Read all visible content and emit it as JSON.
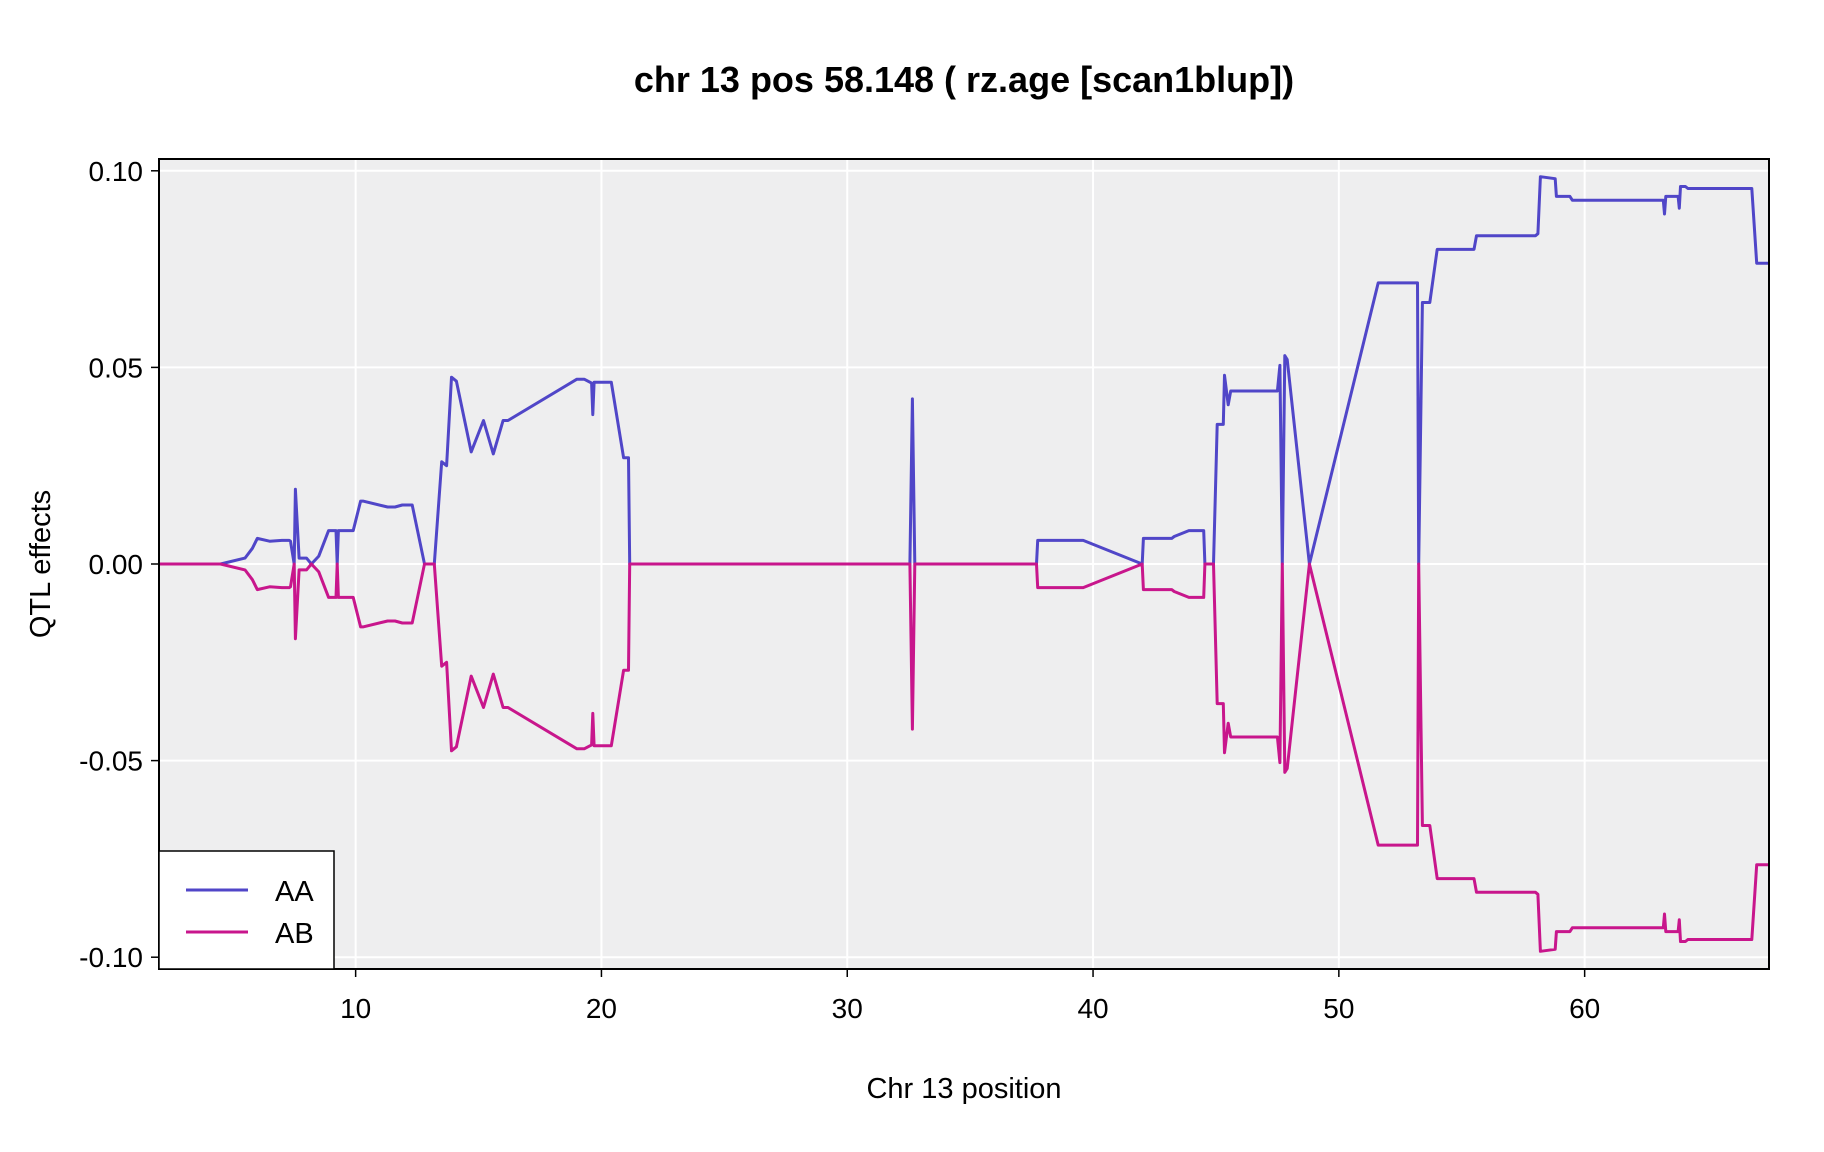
{
  "chart_data": {
    "type": "line",
    "title": "chr 13 pos 58.148 ( rz.age  [scan1blup])",
    "xlabel": "Chr 13 position",
    "ylabel": "QTL effects",
    "xlim": [
      2,
      67.5
    ],
    "ylim": [
      -0.103,
      0.103
    ],
    "x_ticks": [
      10,
      20,
      30,
      40,
      50,
      60
    ],
    "y_ticks": [
      0.1,
      0.05,
      0.0,
      -0.05,
      -0.1
    ],
    "y_tick_labels": [
      "0.10",
      "0.05",
      "0.00",
      "-0.05",
      "-0.10"
    ],
    "grid": true,
    "legend_position": "bottom-left",
    "colors": {
      "AA": "#5046c8",
      "AB": "#c8168c",
      "panel": "#eeeeef",
      "grid": "#ffffff"
    },
    "x": [
      2,
      4.5,
      5.5,
      5.8,
      6.0,
      6.5,
      7.0,
      7.3,
      7.35,
      7.5,
      7.55,
      7.7,
      8.0,
      8.2,
      8.5,
      8.9,
      9.2,
      9.25,
      9.3,
      9.4,
      9.9,
      10.2,
      10.3,
      11.3,
      11.6,
      11.9,
      12.3,
      12.8,
      13.2,
      13.5,
      13.7,
      13.9,
      14.1,
      14.7,
      15.2,
      15.6,
      16.0,
      16.2,
      19.0,
      19.3,
      19.6,
      19.65,
      19.7,
      19.8,
      20.4,
      20.9,
      21.1,
      21.15,
      32.55,
      32.65,
      32.75,
      37.7,
      37.75,
      39.4,
      39.6,
      42.0,
      42.05,
      43.2,
      43.3,
      43.9,
      44.5,
      44.55,
      44.9,
      45.05,
      45.3,
      45.35,
      45.5,
      45.6,
      47.5,
      47.6,
      47.7,
      47.8,
      47.9,
      48.8,
      51.6,
      53.2,
      53.25,
      53.4,
      53.7,
      54.0,
      55.5,
      55.6,
      58.0,
      58.1,
      58.2,
      58.8,
      58.85,
      59.4,
      59.5,
      63.2,
      63.25,
      63.3,
      63.8,
      63.85,
      63.9,
      64.1,
      64.2,
      66.8,
      67.0,
      67.5
    ],
    "series": [
      {
        "name": "AA",
        "values": [
          0,
          0,
          0.0015,
          0.004,
          0.0065,
          0.0058,
          0.006,
          0.006,
          0.0058,
          0,
          0.019,
          0.0015,
          0.0015,
          0,
          0.002,
          0.0085,
          0.0085,
          0,
          0.0085,
          0.0085,
          0.0085,
          0.016,
          0.016,
          0.0145,
          0.0145,
          0.015,
          0.015,
          0,
          0,
          0.026,
          0.025,
          0.0475,
          0.0465,
          0.0285,
          0.0365,
          0.028,
          0.0365,
          0.0365,
          0.047,
          0.047,
          0.046,
          0.038,
          0.0462,
          0.0462,
          0.0462,
          0.027,
          0.027,
          0,
          0,
          0.042,
          0,
          0,
          0.006,
          0.006,
          0.006,
          0,
          0.0065,
          0.0065,
          0.007,
          0.0085,
          0.0085,
          0,
          0,
          0.0355,
          0.0355,
          0.048,
          0.0405,
          0.044,
          0.044,
          0.0505,
          0,
          0.053,
          0.052,
          0,
          0.0715,
          0.0715,
          0,
          0.0665,
          0.0665,
          0.08,
          0.08,
          0.0835,
          0.0835,
          0.084,
          0.0985,
          0.098,
          0.0935,
          0.0935,
          0.0925,
          0.0925,
          0.089,
          0.0935,
          0.0935,
          0.0905,
          0.096,
          0.096,
          0.0955,
          0.0955,
          0.0765,
          0.0765
        ]
      },
      {
        "name": "AB",
        "values": [
          0,
          0,
          -0.0015,
          -0.004,
          -0.0065,
          -0.0058,
          -0.006,
          -0.006,
          -0.0058,
          0,
          -0.019,
          -0.0015,
          -0.0015,
          0,
          -0.002,
          -0.0085,
          -0.0085,
          0,
          -0.0085,
          -0.0085,
          -0.0085,
          -0.016,
          -0.016,
          -0.0145,
          -0.0145,
          -0.015,
          -0.015,
          0,
          0,
          -0.026,
          -0.025,
          -0.0475,
          -0.0465,
          -0.0285,
          -0.0365,
          -0.028,
          -0.0365,
          -0.0365,
          -0.047,
          -0.047,
          -0.046,
          -0.038,
          -0.0462,
          -0.0462,
          -0.0462,
          -0.027,
          -0.027,
          0,
          0,
          -0.042,
          0,
          0,
          -0.006,
          -0.006,
          -0.006,
          0,
          -0.0065,
          -0.0065,
          -0.007,
          -0.0085,
          -0.0085,
          0,
          0,
          -0.0355,
          -0.0355,
          -0.048,
          -0.0405,
          -0.044,
          -0.044,
          -0.0505,
          0,
          -0.053,
          -0.052,
          0,
          -0.0715,
          -0.0715,
          0,
          -0.0665,
          -0.0665,
          -0.08,
          -0.08,
          -0.0835,
          -0.0835,
          -0.084,
          -0.0985,
          -0.098,
          -0.0935,
          -0.0935,
          -0.0925,
          -0.0925,
          -0.089,
          -0.0935,
          -0.0935,
          -0.0905,
          -0.096,
          -0.096,
          -0.0955,
          -0.0955,
          -0.0765,
          -0.0765
        ]
      }
    ]
  }
}
